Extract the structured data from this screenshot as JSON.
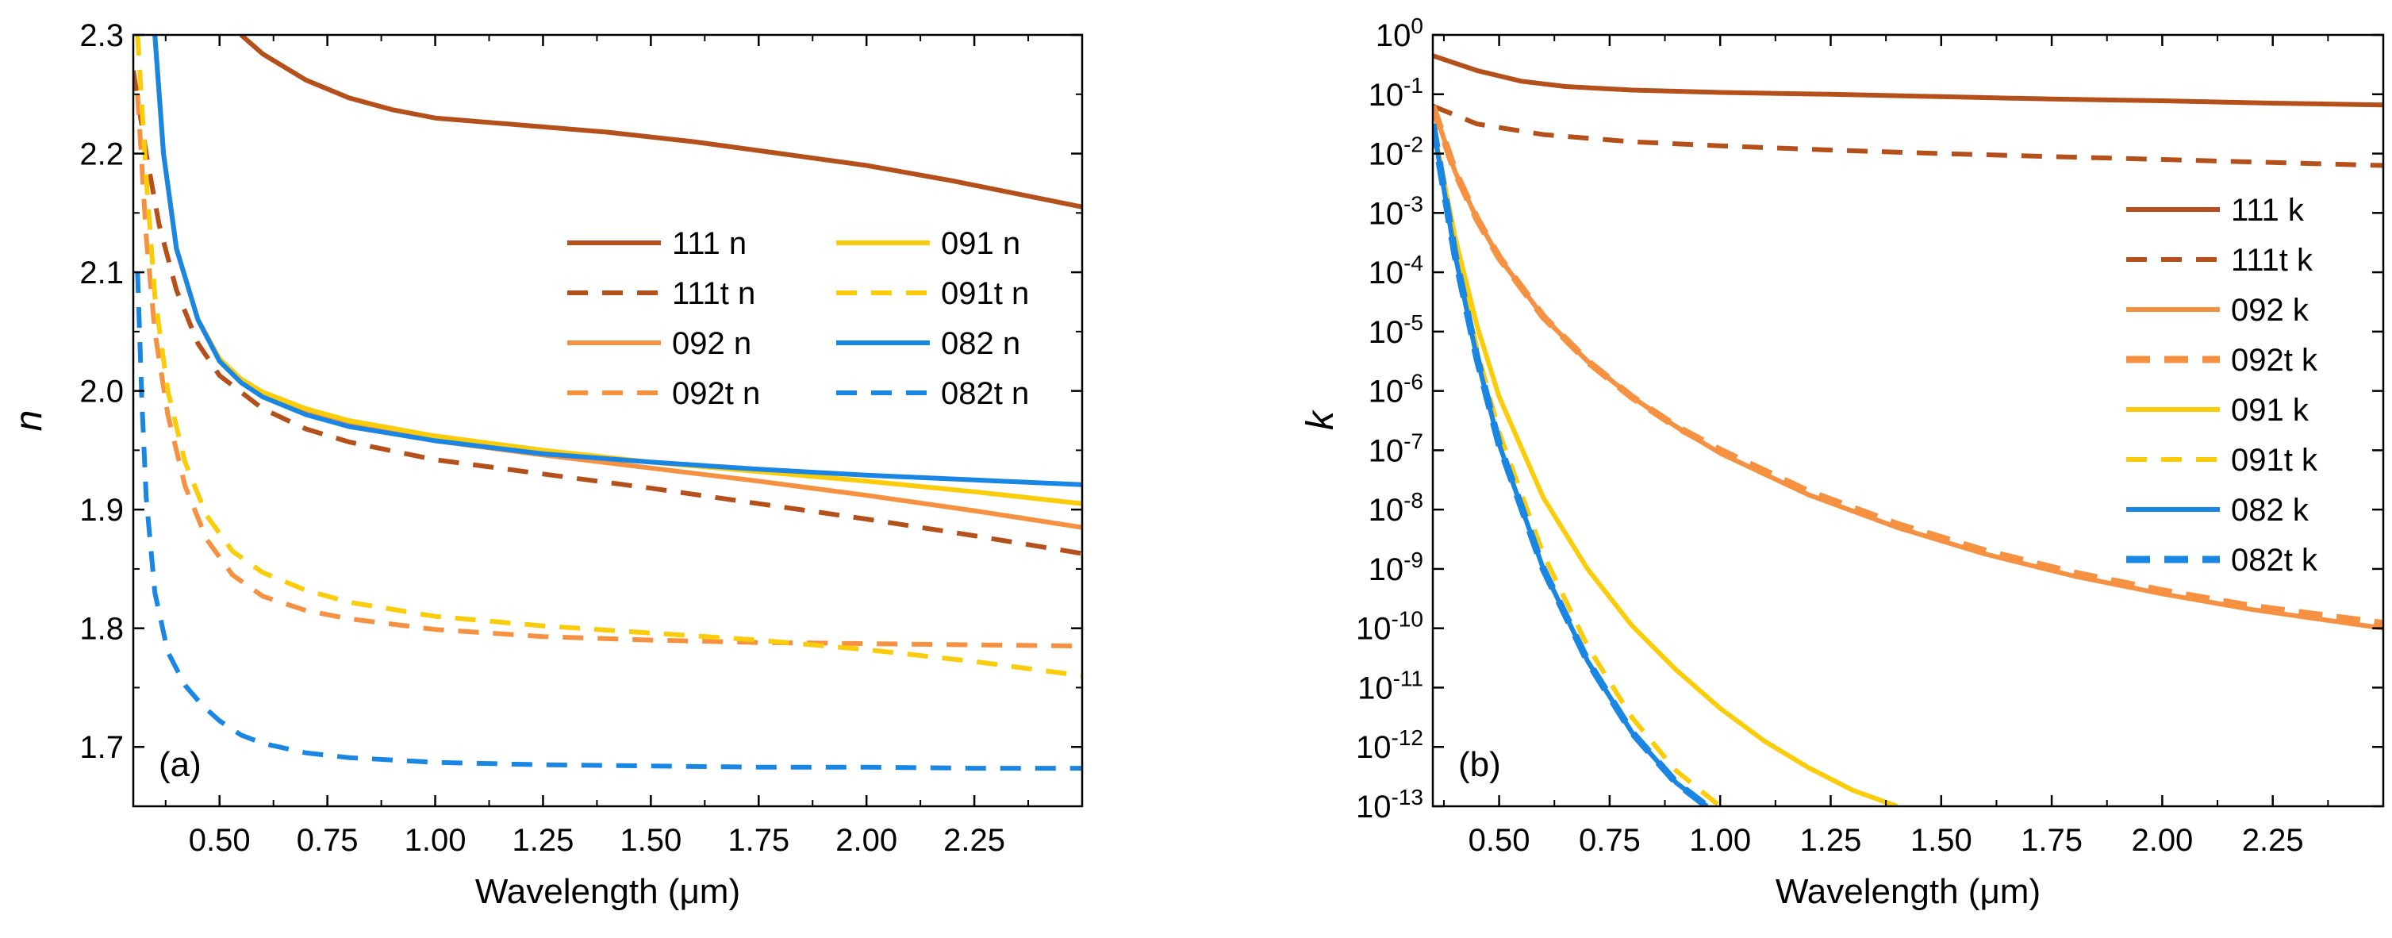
{
  "chart_data": [
    {
      "type": "line",
      "panel_label": "(a)",
      "xlabel": "Wavelength (μm)",
      "ylabel": "n",
      "xlim": [
        0.3,
        2.5
      ],
      "ylim": [
        1.65,
        2.3
      ],
      "x_ticks": [
        "0.50",
        "0.75",
        "1.00",
        "1.25",
        "1.50",
        "1.75",
        "2.00",
        "2.25"
      ],
      "x_tick_values": [
        0.5,
        0.75,
        1.0,
        1.25,
        1.5,
        1.75,
        2.0,
        2.25
      ],
      "y_ticks": [
        "1.7",
        "1.8",
        "1.9",
        "2.0",
        "2.1",
        "2.2",
        "2.3"
      ],
      "y_tick_values": [
        1.7,
        1.8,
        1.9,
        2.0,
        2.1,
        2.2,
        2.3
      ],
      "legend_position": "center-right",
      "series": [
        {
          "name": "111 n",
          "color": "#b5501b",
          "dash": "solid",
          "x": [
            0.55,
            0.6,
            0.7,
            0.8,
            0.9,
            1.0,
            1.2,
            1.4,
            1.6,
            1.8,
            2.0,
            2.2,
            2.5
          ],
          "y": [
            2.3,
            2.284,
            2.262,
            2.247,
            2.237,
            2.23,
            2.224,
            2.218,
            2.21,
            2.2,
            2.19,
            2.177,
            2.155
          ]
        },
        {
          "name": "111t n",
          "color": "#b5501b",
          "dash": "dash",
          "x": [
            0.3,
            0.33,
            0.36,
            0.4,
            0.45,
            0.5,
            0.6,
            0.7,
            0.8,
            1.0,
            1.25,
            1.5,
            1.75,
            2.0,
            2.25,
            2.5
          ],
          "y": [
            2.27,
            2.2,
            2.14,
            2.085,
            2.04,
            2.013,
            1.985,
            1.968,
            1.957,
            1.942,
            1.93,
            1.918,
            1.905,
            1.892,
            1.878,
            1.863
          ]
        },
        {
          "name": "092 n",
          "color": "#f59141",
          "dash": "solid",
          "x": [
            0.35,
            0.37,
            0.4,
            0.45,
            0.5,
            0.55,
            0.6,
            0.7,
            0.8,
            1.0,
            1.25,
            1.5,
            1.75,
            2.0,
            2.25,
            2.5
          ],
          "y": [
            2.3,
            2.2,
            2.12,
            2.06,
            2.027,
            2.01,
            1.998,
            1.982,
            1.972,
            1.958,
            1.946,
            1.935,
            1.924,
            1.912,
            1.899,
            1.885
          ]
        },
        {
          "name": "092t n",
          "color": "#f59141",
          "dash": "dash",
          "x": [
            0.31,
            0.33,
            0.35,
            0.38,
            0.42,
            0.47,
            0.53,
            0.6,
            0.7,
            0.8,
            1.0,
            1.25,
            1.5,
            1.75,
            2.0,
            2.25,
            2.5
          ],
          "y": [
            2.25,
            2.13,
            2.05,
            1.98,
            1.92,
            1.875,
            1.845,
            1.827,
            1.815,
            1.808,
            1.799,
            1.793,
            1.79,
            1.788,
            1.787,
            1.786,
            1.785
          ]
        },
        {
          "name": "091 n",
          "color": "#fbcc0a",
          "dash": "solid",
          "x": [
            0.35,
            0.37,
            0.4,
            0.45,
            0.5,
            0.55,
            0.6,
            0.7,
            0.8,
            1.0,
            1.25,
            1.5,
            1.75,
            2.0,
            2.25,
            2.5
          ],
          "y": [
            2.3,
            2.2,
            2.12,
            2.06,
            2.027,
            2.01,
            1.999,
            1.985,
            1.975,
            1.962,
            1.95,
            1.94,
            1.932,
            1.924,
            1.915,
            1.905
          ]
        },
        {
          "name": "091t n",
          "color": "#fbcc0a",
          "dash": "dash",
          "x": [
            0.31,
            0.33,
            0.35,
            0.38,
            0.42,
            0.47,
            0.53,
            0.6,
            0.7,
            0.8,
            1.0,
            1.25,
            1.5,
            1.75,
            2.0,
            2.25,
            2.5
          ],
          "y": [
            2.3,
            2.18,
            2.08,
            2.0,
            1.94,
            1.895,
            1.865,
            1.847,
            1.832,
            1.822,
            1.81,
            1.802,
            1.796,
            1.79,
            1.782,
            1.772,
            1.76
          ]
        },
        {
          "name": "082 n",
          "color": "#1a86e3",
          "dash": "solid",
          "x": [
            0.35,
            0.37,
            0.4,
            0.45,
            0.5,
            0.55,
            0.6,
            0.7,
            0.8,
            1.0,
            1.25,
            1.5,
            1.75,
            2.0,
            2.25,
            2.5
          ],
          "y": [
            2.3,
            2.2,
            2.12,
            2.06,
            2.025,
            2.007,
            1.995,
            1.98,
            1.97,
            1.958,
            1.947,
            1.94,
            1.934,
            1.929,
            1.925,
            1.921
          ]
        },
        {
          "name": "082t n",
          "color": "#1a86e3",
          "dash": "dash",
          "x": [
            0.31,
            0.32,
            0.33,
            0.35,
            0.38,
            0.42,
            0.46,
            0.5,
            0.55,
            0.6,
            0.7,
            0.8,
            1.0,
            1.25,
            1.5,
            1.75,
            2.0,
            2.25,
            2.5
          ],
          "y": [
            2.1,
            1.99,
            1.91,
            1.83,
            1.78,
            1.752,
            1.735,
            1.722,
            1.71,
            1.703,
            1.695,
            1.691,
            1.687,
            1.685,
            1.684,
            1.683,
            1.683,
            1.682,
            1.682
          ]
        }
      ]
    },
    {
      "type": "line",
      "panel_label": "(b)",
      "xlabel": "Wavelength (μm)",
      "ylabel": "k",
      "y_scale": "log",
      "xlim": [
        0.35,
        2.5
      ],
      "ylim_exponent": [
        -13,
        0
      ],
      "x_ticks": [
        "0.50",
        "0.75",
        "1.00",
        "1.25",
        "1.50",
        "1.75",
        "2.00",
        "2.25"
      ],
      "x_tick_values": [
        0.5,
        0.75,
        1.0,
        1.25,
        1.5,
        1.75,
        2.0,
        2.25
      ],
      "y_tick_base": "10",
      "y_tick_exponents": [
        "0",
        "-1",
        "-2",
        "-3",
        "-4",
        "-5",
        "-6",
        "-7",
        "-8",
        "-9",
        "-10",
        "-11",
        "-12",
        "-13"
      ],
      "legend_position": "right",
      "series": [
        {
          "name": "111 k",
          "color": "#b5501b",
          "dash": "solid",
          "width": "normal",
          "x": [
            0.35,
            0.45,
            0.55,
            0.65,
            0.8,
            1.0,
            1.25,
            1.5,
            1.75,
            2.0,
            2.25,
            2.5
          ],
          "y": [
            -0.35,
            -0.6,
            -0.78,
            -0.87,
            -0.93,
            -0.97,
            -1.0,
            -1.04,
            -1.08,
            -1.11,
            -1.15,
            -1.18
          ]
        },
        {
          "name": "111t k",
          "color": "#b5501b",
          "dash": "dash",
          "width": "normal",
          "x": [
            0.35,
            0.45,
            0.6,
            0.8,
            1.0,
            1.25,
            1.5,
            1.75,
            2.0,
            2.25,
            2.5
          ],
          "y": [
            -1.2,
            -1.5,
            -1.68,
            -1.8,
            -1.87,
            -1.94,
            -2.0,
            -2.05,
            -2.1,
            -2.15,
            -2.2
          ]
        },
        {
          "name": "092 k",
          "color": "#f59141",
          "dash": "solid",
          "width": "normal",
          "x": [
            0.35,
            0.4,
            0.45,
            0.5,
            0.6,
            0.7,
            0.8,
            0.9,
            1.0,
            1.2,
            1.4,
            1.6,
            1.8,
            2.0,
            2.2,
            2.5
          ],
          "y": [
            -1.2,
            -2.3,
            -3.1,
            -3.75,
            -4.75,
            -5.5,
            -6.1,
            -6.6,
            -7.05,
            -7.75,
            -8.3,
            -8.75,
            -9.12,
            -9.42,
            -9.68,
            -10.0
          ]
        },
        {
          "name": "092t k",
          "color": "#f59141",
          "dash": "dash",
          "width": "thick",
          "x": [
            0.35,
            0.4,
            0.45,
            0.5,
            0.6,
            0.7,
            0.8,
            0.9,
            1.0,
            1.2,
            1.4,
            1.6,
            1.8,
            2.0,
            2.2,
            2.5
          ],
          "y": [
            -1.2,
            -2.3,
            -3.1,
            -3.75,
            -4.75,
            -5.5,
            -6.1,
            -6.6,
            -7.0,
            -7.7,
            -8.25,
            -8.7,
            -9.07,
            -9.37,
            -9.63,
            -9.92
          ]
        },
        {
          "name": "091 k",
          "color": "#fbcc0a",
          "dash": "solid",
          "width": "normal",
          "x": [
            0.35,
            0.4,
            0.45,
            0.5,
            0.6,
            0.7,
            0.8,
            0.9,
            1.0,
            1.1,
            1.2,
            1.3,
            1.4
          ],
          "y": [
            -1.5,
            -3.4,
            -4.9,
            -6.1,
            -7.8,
            -9.0,
            -9.95,
            -10.7,
            -11.35,
            -11.9,
            -12.35,
            -12.73,
            -13.0
          ]
        },
        {
          "name": "091t k",
          "color": "#fbcc0a",
          "dash": "dash",
          "width": "normal",
          "x": [
            0.35,
            0.4,
            0.45,
            0.5,
            0.6,
            0.7,
            0.8,
            0.9,
            1.0
          ],
          "y": [
            -1.5,
            -3.6,
            -5.3,
            -6.7,
            -8.75,
            -10.3,
            -11.5,
            -12.4,
            -13.0
          ]
        },
        {
          "name": "082 k",
          "color": "#1a86e3",
          "dash": "solid",
          "width": "normal",
          "x": [
            0.35,
            0.4,
            0.45,
            0.5,
            0.6,
            0.7,
            0.8,
            0.9,
            0.97
          ],
          "y": [
            -1.5,
            -3.7,
            -5.45,
            -6.9,
            -9.0,
            -10.55,
            -11.75,
            -12.6,
            -13.0
          ]
        },
        {
          "name": "082t k",
          "color": "#1a86e3",
          "dash": "dash",
          "width": "thick",
          "x": [
            0.35,
            0.4,
            0.45,
            0.5,
            0.6,
            0.7,
            0.8,
            0.9,
            0.97
          ],
          "y": [
            -1.5,
            -3.7,
            -5.45,
            -6.9,
            -9.0,
            -10.55,
            -11.75,
            -12.6,
            -13.0
          ]
        }
      ]
    }
  ]
}
